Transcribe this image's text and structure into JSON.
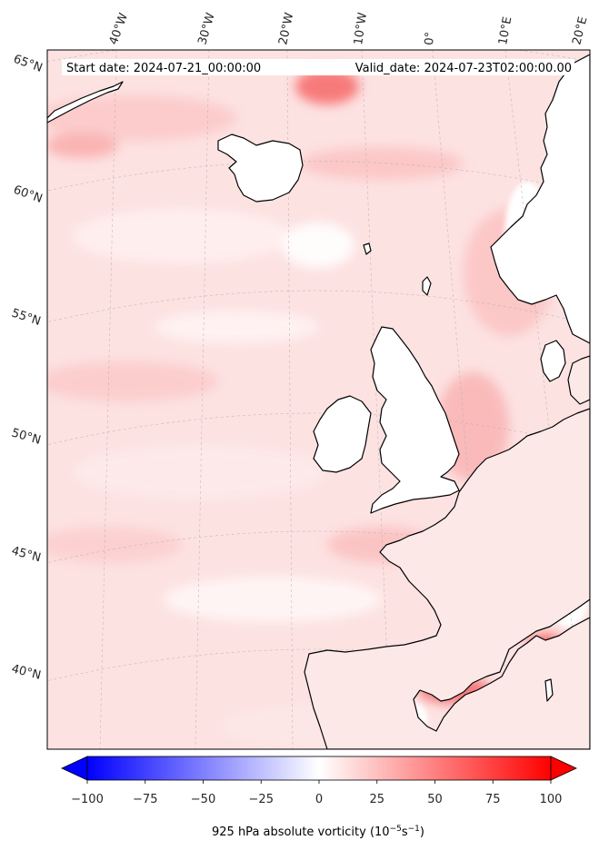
{
  "header": {
    "start_date": "Start date: 2024-07-21_00:00:00",
    "valid_date": "Valid_date: 2024-07-23T02:00:00.00"
  },
  "graticule": {
    "lon_labels": [
      "40°W",
      "30°W",
      "20°W",
      "10°W",
      "0°",
      "10°E",
      "20°E"
    ],
    "lat_labels": [
      "65°N",
      "60°N",
      "55°N",
      "50°N",
      "45°N",
      "40°N"
    ]
  },
  "colorbar": {
    "ticks": [
      "−100",
      "−75",
      "−50",
      "−25",
      "0",
      "25",
      "50",
      "75",
      "100"
    ],
    "label_main": "925 hPa absolute vorticity (10",
    "label_exp1": "−5",
    "label_mid": "s",
    "label_exp2": "−1",
    "label_end": ")",
    "min": -100,
    "max": 100,
    "colors": {
      "negative": "#0000ff",
      "zero": "#ffffff",
      "positive": "#ff0000"
    }
  },
  "colors": {
    "field_base": "#fde0e0",
    "coastline": "#000000",
    "land_low": "#ffffff"
  }
}
